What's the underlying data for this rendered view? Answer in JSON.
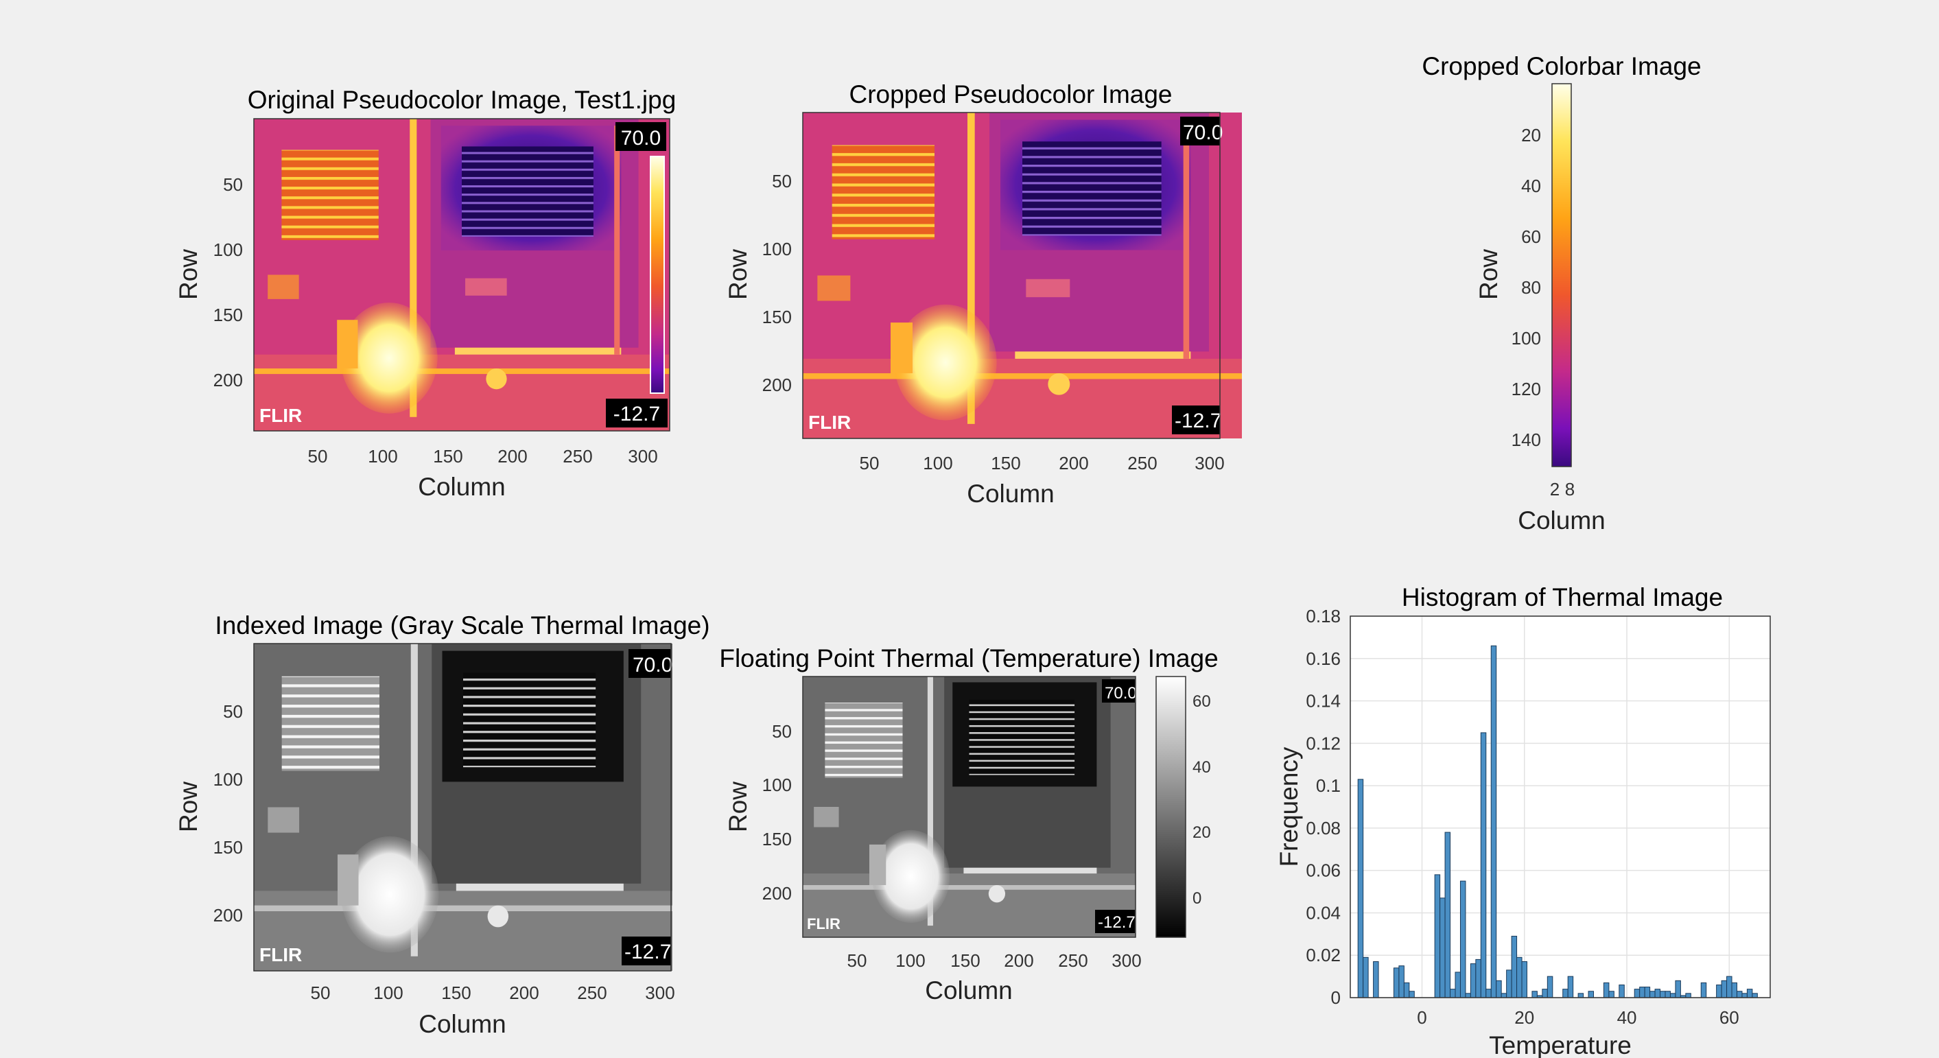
{
  "panels": {
    "original": {
      "title": "Original Pseudocolor Image, Test1.jpg",
      "xlabel": "Column",
      "ylabel": "Row",
      "xticks": [
        "50",
        "100",
        "150",
        "200",
        "250",
        "300"
      ],
      "yticks": [
        "50",
        "100",
        "150",
        "200"
      ],
      "overlay_max": "70.0",
      "overlay_min": "-12.7",
      "logo": "FLIR"
    },
    "cropped": {
      "title": "Cropped Pseudocolor Image",
      "xlabel": "Column",
      "ylabel": "Row",
      "xticks": [
        "50",
        "100",
        "150",
        "200",
        "250",
        "300"
      ],
      "yticks": [
        "50",
        "100",
        "150",
        "200"
      ],
      "overlay_max": "70.0",
      "overlay_min": "-12.7",
      "logo": "FLIR"
    },
    "colorbar_crop": {
      "title": "Cropped Colorbar Image",
      "xlabel": "Column",
      "ylabel": "Row",
      "xticks": [
        "2",
        "8"
      ],
      "yticks": [
        "20",
        "40",
        "60",
        "80",
        "100",
        "120",
        "140"
      ]
    },
    "indexed": {
      "title": "Indexed Image (Gray Scale Thermal Image)",
      "xlabel": "Column",
      "ylabel": "Row",
      "xticks": [
        "50",
        "100",
        "150",
        "200",
        "250",
        "300"
      ],
      "yticks": [
        "50",
        "100",
        "150",
        "200"
      ],
      "overlay_max": "70.0",
      "overlay_min": "-12.7",
      "logo": "FLIR"
    },
    "floating": {
      "title": "Floating Point Thermal (Temperature) Image",
      "xlabel": "Column",
      "ylabel": "Row",
      "xticks": [
        "50",
        "100",
        "150",
        "200",
        "250",
        "300"
      ],
      "yticks": [
        "50",
        "100",
        "150",
        "200"
      ],
      "colorbar_ticks": [
        "60",
        "40",
        "20",
        "0"
      ],
      "overlay_max": "70.0",
      "overlay_min": "-12.7",
      "logo": "FLIR"
    }
  },
  "chart_data": {
    "type": "bar",
    "title": "Histogram of Thermal Image",
    "xlabel": "Temperature",
    "ylabel": "Frequency",
    "xlim": [
      -14,
      68
    ],
    "ylim": [
      0,
      0.18
    ],
    "grid": true,
    "xticks": [
      "0",
      "20",
      "40",
      "60"
    ],
    "yticks": [
      "0",
      "0.02",
      "0.04",
      "0.06",
      "0.08",
      "0.1",
      "0.12",
      "0.14",
      "0.16",
      "0.18"
    ],
    "bar_color": "#4a8fc4",
    "x": [
      -12,
      -11,
      -9,
      -5,
      -4,
      -3,
      -2,
      3,
      4,
      5,
      6,
      7,
      8,
      9,
      10,
      11,
      12,
      13,
      14,
      15,
      16,
      17,
      18,
      19,
      20,
      22,
      23,
      24,
      25,
      28,
      29,
      31,
      33,
      36,
      37,
      39,
      42,
      43,
      44,
      45,
      46,
      47,
      48,
      49,
      50,
      51,
      52,
      55,
      58,
      59,
      60,
      61,
      62,
      63,
      64,
      65
    ],
    "values": [
      0.103,
      0.019,
      0.017,
      0.014,
      0.015,
      0.007,
      0.003,
      0.058,
      0.047,
      0.078,
      0.004,
      0.012,
      0.055,
      0.002,
      0.016,
      0.018,
      0.125,
      0.004,
      0.166,
      0.008,
      0.002,
      0.013,
      0.029,
      0.019,
      0.017,
      0.003,
      0.001,
      0.004,
      0.01,
      0.004,
      0.01,
      0.002,
      0.003,
      0.007,
      0.003,
      0.006,
      0.004,
      0.005,
      0.005,
      0.003,
      0.004,
      0.003,
      0.003,
      0.002,
      0.008,
      0.001,
      0.002,
      0.007,
      0.006,
      0.008,
      0.01,
      0.007,
      0.003,
      0.002,
      0.004,
      0.002
    ]
  }
}
